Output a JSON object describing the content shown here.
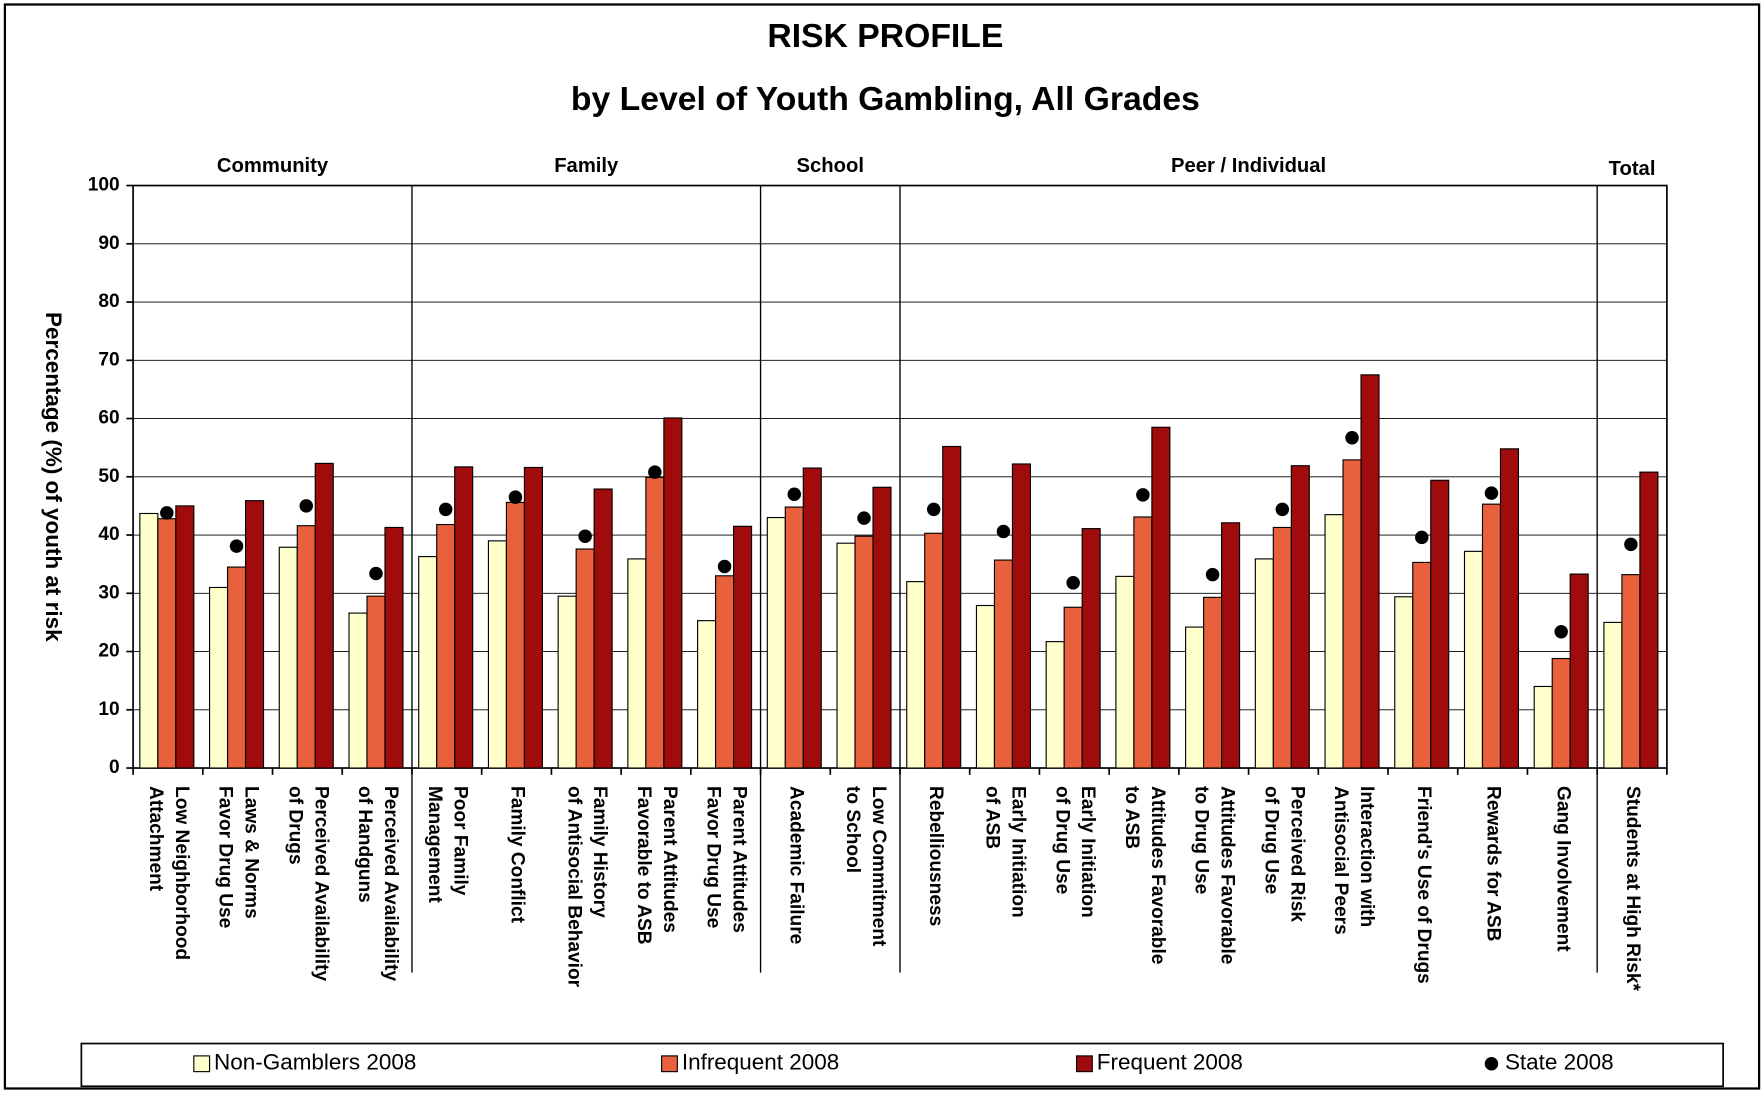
{
  "chart_data": {
    "type": "bar",
    "title": "RISK PROFILE",
    "subtitle": "by Level of Youth Gambling, All Grades",
    "y_label": "Percentage (%) of youth at risk",
    "groups": [
      {
        "name": "Community",
        "size": 4
      },
      {
        "name": "Family",
        "size": 5
      },
      {
        "name": "School",
        "size": 2
      },
      {
        "name": "Peer / Individual",
        "size": 10
      },
      {
        "name": "Total",
        "size": 1
      }
    ],
    "categories": [
      [
        "Low Neighborhood",
        "Attachment"
      ],
      [
        "Laws & Norms",
        "Favor Drug Use"
      ],
      [
        "Perceived Availability",
        "of Drugs"
      ],
      [
        "Perceived Availability",
        "of Handguns"
      ],
      [
        "Poor Family",
        "Management"
      ],
      [
        "Family Conflict"
      ],
      [
        "Family History",
        "of Antisocial Behavior"
      ],
      [
        "Parent Attitudes",
        "Favorable to ASB"
      ],
      [
        "Parent Attitudes",
        "Favor Drug Use"
      ],
      [
        "Academic Failure"
      ],
      [
        "Low Commitment",
        "to School"
      ],
      [
        "Rebelliousness"
      ],
      [
        "Early Initiation",
        "of ASB"
      ],
      [
        "Early Initiation",
        "of Drug Use"
      ],
      [
        "Attitudes Favorable",
        "to ASB"
      ],
      [
        "Attitudes Favorable",
        "to Drug Use"
      ],
      [
        "Perceived Risk",
        "of Drug Use"
      ],
      [
        "Interaction with",
        "Antisocial Peers"
      ],
      [
        "Friend's Use of Drugs"
      ],
      [
        "Rewards for ASB"
      ],
      [
        "Gang Involvement"
      ],
      [
        "Students at High Risk*"
      ]
    ],
    "series": [
      {
        "name": "Non-Gamblers 2008",
        "color": "#ffffcc",
        "style": "bar",
        "values": [
          43.7,
          31,
          37.9,
          26.6,
          36.3,
          39,
          29.5,
          35.9,
          25.3,
          43,
          38.6,
          32,
          27.9,
          21.7,
          32.9,
          24.2,
          35.9,
          43.5,
          29.4,
          37.2,
          14,
          25
        ]
      },
      {
        "name": "Infrequent 2008",
        "color": "#e8603c",
        "style": "bar",
        "values": [
          42.8,
          34.5,
          41.6,
          29.5,
          41.8,
          45.6,
          37.6,
          49.9,
          33,
          44.8,
          39.8,
          40.3,
          35.7,
          27.6,
          43.1,
          29.3,
          41.3,
          52.9,
          35.3,
          45.3,
          18.8,
          33.2
        ]
      },
      {
        "name": "Frequent 2008",
        "color": "#a00c0c",
        "style": "bar",
        "values": [
          45,
          45.9,
          52.3,
          41.3,
          51.7,
          51.6,
          47.9,
          60.1,
          41.5,
          51.5,
          48.2,
          55.2,
          52.2,
          41.1,
          58.5,
          42.1,
          51.9,
          67.5,
          49.4,
          54.8,
          33.3,
          50.8
        ]
      },
      {
        "name": "State 2008",
        "color": "#000000",
        "style": "dot",
        "values": [
          43.8,
          38.1,
          45,
          33.4,
          44.4,
          46.5,
          39.8,
          50.8,
          34.6,
          47,
          42.9,
          44.4,
          40.6,
          31.8,
          46.9,
          33.2,
          44.4,
          56.7,
          39.6,
          47.2,
          23.4,
          38.4
        ]
      }
    ],
    "ylim": [
      0,
      100
    ],
    "yticks": [
      0,
      10,
      20,
      30,
      40,
      50,
      60,
      70,
      80,
      90,
      100
    ],
    "grid": true
  }
}
